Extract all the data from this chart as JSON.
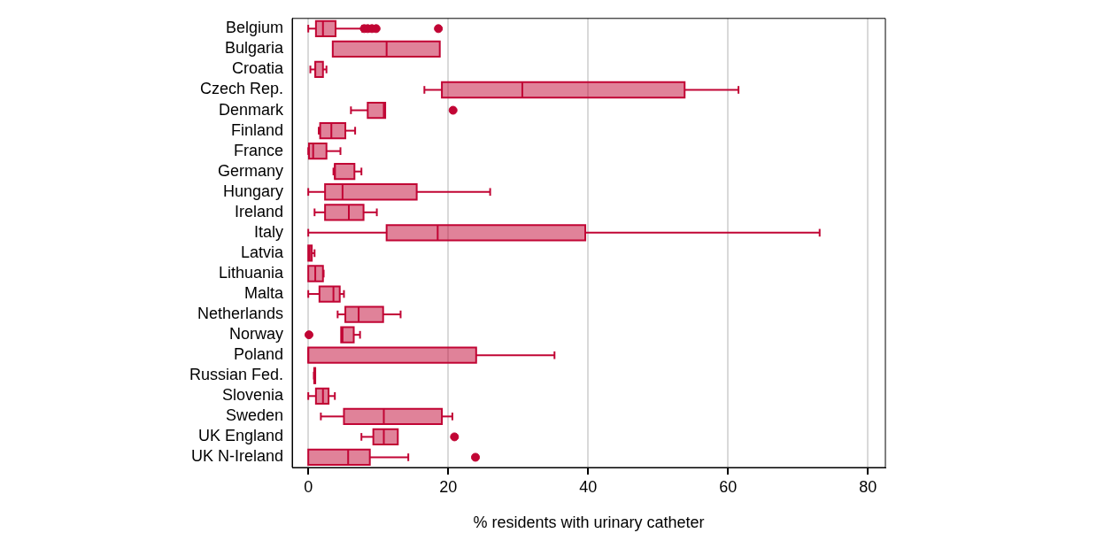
{
  "chart_data": {
    "type": "box",
    "orientation": "horizontal",
    "xlabel": "% residents with urinary catheter",
    "xlim": [
      -2.3,
      82.5
    ],
    "xticks": [
      0,
      20,
      40,
      60,
      80
    ],
    "grid": "x",
    "legend": false,
    "categories": [
      "Belgium",
      "Bulgaria",
      "Croatia",
      "Czech Rep.",
      "Denmark",
      "Finland",
      "France",
      "Germany",
      "Hungary",
      "Ireland",
      "Italy",
      "Latvia",
      "Lithuania",
      "Malta",
      "Netherlands",
      "Norway",
      "Poland",
      "Russian Fed.",
      "Slovenia",
      "Sweden",
      "UK England",
      "UK N-Ireland"
    ],
    "series": [
      {
        "color": "#c10534",
        "boxes": [
          {
            "low": 0,
            "q1": 1.1,
            "median": 2.1,
            "q3": 3.9,
            "high": 7.7,
            "outliers": [
              8.0,
              8.5,
              9.1,
              9.7,
              18.6
            ]
          },
          {
            "low": 3.5,
            "q1": 3.5,
            "median": 11.2,
            "q3": 18.8,
            "high": 18.8
          },
          {
            "low": 0.3,
            "q1": 1.0,
            "median": 1.0,
            "q3": 2.1,
            "high": 2.6
          },
          {
            "low": 16.6,
            "q1": 19.1,
            "median": 30.6,
            "q3": 53.8,
            "high": 61.5
          },
          {
            "low": 6.1,
            "q1": 8.5,
            "median": 10.8,
            "q3": 11.0,
            "high": 11.0,
            "outliers": [
              20.7
            ]
          },
          {
            "low": 1.5,
            "q1": 1.7,
            "median": 3.3,
            "q3": 5.3,
            "high": 6.7
          },
          {
            "low": 0,
            "q1": 0.1,
            "median": 0.7,
            "q3": 2.6,
            "high": 4.6
          },
          {
            "low": 3.6,
            "q1": 3.8,
            "median": 3.8,
            "q3": 6.6,
            "high": 7.6
          },
          {
            "low": 0,
            "q1": 2.4,
            "median": 4.9,
            "q3": 15.5,
            "high": 26.0
          },
          {
            "low": 0.9,
            "q1": 2.4,
            "median": 5.8,
            "q3": 7.9,
            "high": 9.8
          },
          {
            "low": 0,
            "q1": 11.2,
            "median": 18.5,
            "q3": 39.6,
            "high": 73.1
          },
          {
            "low": 0,
            "q1": 0,
            "median": 0.2,
            "q3": 0.5,
            "high": 0.9
          },
          {
            "low": 0,
            "q1": 0,
            "median": 1.0,
            "q3": 2.1,
            "high": 2.2
          },
          {
            "low": 0,
            "q1": 1.6,
            "median": 3.6,
            "q3": 4.5,
            "high": 5.1
          },
          {
            "low": 4.2,
            "q1": 5.3,
            "median": 7.2,
            "q3": 10.7,
            "high": 13.2
          },
          {
            "low": 4.7,
            "q1": 4.7,
            "median": 4.9,
            "q3": 6.5,
            "high": 7.4,
            "outliers": [
              0.1
            ]
          },
          {
            "low": 0,
            "q1": 0,
            "median": 0,
            "q3": 24.0,
            "high": 35.2
          },
          {
            "low": 0.8,
            "q1": 0.85,
            "median": 0.9,
            "q3": 1.0,
            "high": 1.0
          },
          {
            "low": 0,
            "q1": 1.1,
            "median": 2.1,
            "q3": 2.9,
            "high": 3.8
          },
          {
            "low": 1.8,
            "q1": 5.1,
            "median": 10.8,
            "q3": 19.1,
            "high": 20.6
          },
          {
            "low": 7.6,
            "q1": 9.3,
            "median": 10.8,
            "q3": 12.8,
            "high": 12.8,
            "outliers": [
              20.9
            ]
          },
          {
            "low": 0,
            "q1": 0,
            "median": 5.7,
            "q3": 8.8,
            "high": 14.3,
            "outliers": [
              23.9
            ]
          }
        ]
      }
    ]
  }
}
